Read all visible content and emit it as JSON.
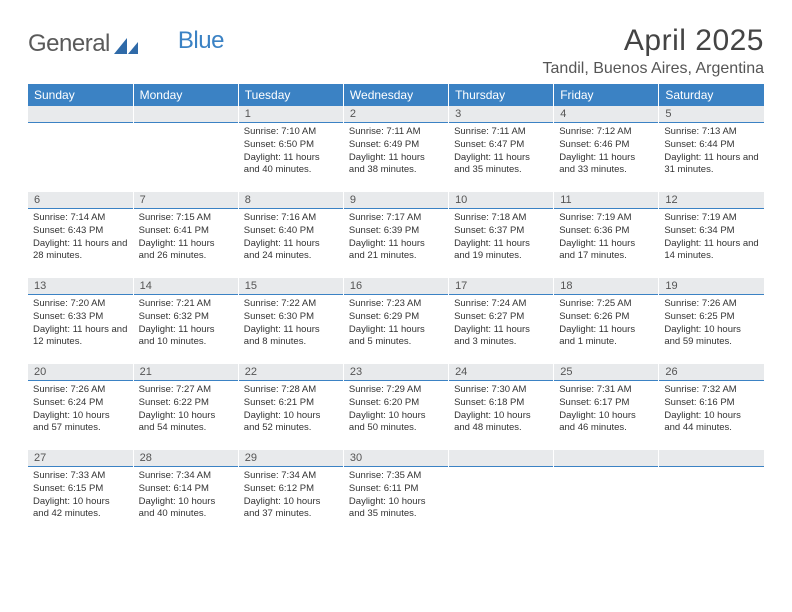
{
  "logo": {
    "general": "General",
    "blue": "Blue"
  },
  "title": {
    "monthYear": "April 2025",
    "location": "Tandil, Buenos Aires, Argentina"
  },
  "colors": {
    "headerBg": "#3b82c4",
    "headerText": "#ffffff",
    "dayBarBg": "#e8eaec",
    "pageBg": "#ffffff",
    "text": "#333333"
  },
  "dayNames": [
    "Sunday",
    "Monday",
    "Tuesday",
    "Wednesday",
    "Thursday",
    "Friday",
    "Saturday"
  ],
  "weeks": [
    [
      null,
      null,
      {
        "n": "1",
        "sr": "7:10 AM",
        "ss": "6:50 PM",
        "dl": "11 hours and 40 minutes."
      },
      {
        "n": "2",
        "sr": "7:11 AM",
        "ss": "6:49 PM",
        "dl": "11 hours and 38 minutes."
      },
      {
        "n": "3",
        "sr": "7:11 AM",
        "ss": "6:47 PM",
        "dl": "11 hours and 35 minutes."
      },
      {
        "n": "4",
        "sr": "7:12 AM",
        "ss": "6:46 PM",
        "dl": "11 hours and 33 minutes."
      },
      {
        "n": "5",
        "sr": "7:13 AM",
        "ss": "6:44 PM",
        "dl": "11 hours and 31 minutes."
      }
    ],
    [
      {
        "n": "6",
        "sr": "7:14 AM",
        "ss": "6:43 PM",
        "dl": "11 hours and 28 minutes."
      },
      {
        "n": "7",
        "sr": "7:15 AM",
        "ss": "6:41 PM",
        "dl": "11 hours and 26 minutes."
      },
      {
        "n": "8",
        "sr": "7:16 AM",
        "ss": "6:40 PM",
        "dl": "11 hours and 24 minutes."
      },
      {
        "n": "9",
        "sr": "7:17 AM",
        "ss": "6:39 PM",
        "dl": "11 hours and 21 minutes."
      },
      {
        "n": "10",
        "sr": "7:18 AM",
        "ss": "6:37 PM",
        "dl": "11 hours and 19 minutes."
      },
      {
        "n": "11",
        "sr": "7:19 AM",
        "ss": "6:36 PM",
        "dl": "11 hours and 17 minutes."
      },
      {
        "n": "12",
        "sr": "7:19 AM",
        "ss": "6:34 PM",
        "dl": "11 hours and 14 minutes."
      }
    ],
    [
      {
        "n": "13",
        "sr": "7:20 AM",
        "ss": "6:33 PM",
        "dl": "11 hours and 12 minutes."
      },
      {
        "n": "14",
        "sr": "7:21 AM",
        "ss": "6:32 PM",
        "dl": "11 hours and 10 minutes."
      },
      {
        "n": "15",
        "sr": "7:22 AM",
        "ss": "6:30 PM",
        "dl": "11 hours and 8 minutes."
      },
      {
        "n": "16",
        "sr": "7:23 AM",
        "ss": "6:29 PM",
        "dl": "11 hours and 5 minutes."
      },
      {
        "n": "17",
        "sr": "7:24 AM",
        "ss": "6:27 PM",
        "dl": "11 hours and 3 minutes."
      },
      {
        "n": "18",
        "sr": "7:25 AM",
        "ss": "6:26 PM",
        "dl": "11 hours and 1 minute."
      },
      {
        "n": "19",
        "sr": "7:26 AM",
        "ss": "6:25 PM",
        "dl": "10 hours and 59 minutes."
      }
    ],
    [
      {
        "n": "20",
        "sr": "7:26 AM",
        "ss": "6:24 PM",
        "dl": "10 hours and 57 minutes."
      },
      {
        "n": "21",
        "sr": "7:27 AM",
        "ss": "6:22 PM",
        "dl": "10 hours and 54 minutes."
      },
      {
        "n": "22",
        "sr": "7:28 AM",
        "ss": "6:21 PM",
        "dl": "10 hours and 52 minutes."
      },
      {
        "n": "23",
        "sr": "7:29 AM",
        "ss": "6:20 PM",
        "dl": "10 hours and 50 minutes."
      },
      {
        "n": "24",
        "sr": "7:30 AM",
        "ss": "6:18 PM",
        "dl": "10 hours and 48 minutes."
      },
      {
        "n": "25",
        "sr": "7:31 AM",
        "ss": "6:17 PM",
        "dl": "10 hours and 46 minutes."
      },
      {
        "n": "26",
        "sr": "7:32 AM",
        "ss": "6:16 PM",
        "dl": "10 hours and 44 minutes."
      }
    ],
    [
      {
        "n": "27",
        "sr": "7:33 AM",
        "ss": "6:15 PM",
        "dl": "10 hours and 42 minutes."
      },
      {
        "n": "28",
        "sr": "7:34 AM",
        "ss": "6:14 PM",
        "dl": "10 hours and 40 minutes."
      },
      {
        "n": "29",
        "sr": "7:34 AM",
        "ss": "6:12 PM",
        "dl": "10 hours and 37 minutes."
      },
      {
        "n": "30",
        "sr": "7:35 AM",
        "ss": "6:11 PM",
        "dl": "10 hours and 35 minutes."
      },
      null,
      null,
      null
    ]
  ],
  "labels": {
    "sunrise": "Sunrise:",
    "sunset": "Sunset:",
    "daylight": "Daylight:"
  }
}
